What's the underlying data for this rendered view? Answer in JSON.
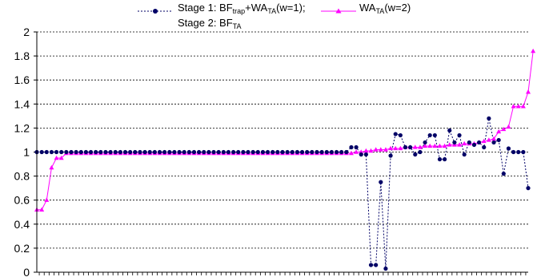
{
  "chart_data": {
    "type": "line",
    "title": "",
    "xlabel": "",
    "ylabel": "",
    "ylim": [
      0,
      2
    ],
    "yticks": [
      "0",
      "0.2",
      "0.4",
      "0.6",
      "0.8",
      "1",
      "1.2",
      "1.4",
      "1.6",
      "1.8",
      "2"
    ],
    "grid": "horizontal dashed",
    "legend_position": "top",
    "n_points": 101,
    "series": [
      {
        "name_line1_prefix": "Stage 1: BF",
        "name_line1_sub1": "trap",
        "name_line1_mid": "+WA",
        "name_line1_sub2": "TA",
        "name_line1_suffix": "(w=1);",
        "name_line2_prefix": "Stage 2: BF",
        "name_line2_sub": "TA",
        "color": "#000066",
        "marker": "circle",
        "line_style": "dotted",
        "values": [
          1.0,
          1.0,
          1.0,
          1.0,
          1.0,
          1.0,
          1.0,
          1.0,
          1.0,
          1.0,
          1.0,
          1.0,
          1.0,
          1.0,
          1.0,
          1.0,
          1.0,
          1.0,
          1.0,
          1.0,
          1.0,
          1.0,
          1.0,
          1.0,
          1.0,
          1.0,
          1.0,
          1.0,
          1.0,
          1.0,
          1.0,
          1.0,
          1.0,
          1.0,
          1.0,
          1.0,
          1.0,
          1.0,
          1.0,
          1.0,
          1.0,
          1.0,
          1.0,
          1.0,
          1.0,
          1.0,
          1.0,
          1.0,
          1.0,
          1.0,
          1.0,
          1.0,
          1.0,
          1.0,
          1.0,
          1.0,
          1.0,
          1.0,
          1.0,
          1.0,
          1.0,
          1.0,
          1.0,
          1.0,
          1.04,
          1.04,
          0.98,
          0.98,
          0.06,
          0.06,
          0.75,
          0.03,
          0.97,
          1.15,
          1.14,
          1.04,
          1.04,
          0.98,
          1.0,
          1.08,
          1.14,
          1.14,
          0.94,
          0.94,
          1.18,
          1.08,
          1.14,
          0.98,
          1.08,
          1.06,
          1.08,
          1.04,
          1.28,
          1.08,
          1.1,
          0.82,
          1.03,
          1.0,
          1.0,
          1.0,
          0.7
        ]
      },
      {
        "name_prefix": "WA",
        "name_sub": "TA",
        "name_suffix": "(w=2)",
        "color": "#ff00ff",
        "marker": "triangle",
        "line_style": "solid",
        "values": [
          0.52,
          0.52,
          0.6,
          0.87,
          0.95,
          0.95,
          0.99,
          0.99,
          0.99,
          0.99,
          0.99,
          0.99,
          0.99,
          0.99,
          0.99,
          0.99,
          0.99,
          0.99,
          0.99,
          0.99,
          0.99,
          0.99,
          0.99,
          0.99,
          0.99,
          0.99,
          0.99,
          0.99,
          0.99,
          0.99,
          0.99,
          0.99,
          0.99,
          0.99,
          0.99,
          0.99,
          0.99,
          0.99,
          0.99,
          0.99,
          0.99,
          0.99,
          0.99,
          0.99,
          0.99,
          0.99,
          0.99,
          0.99,
          0.99,
          0.99,
          0.99,
          0.99,
          0.99,
          0.99,
          0.99,
          0.99,
          0.99,
          0.99,
          0.99,
          0.99,
          0.99,
          0.99,
          0.99,
          0.99,
          0.99,
          1.0,
          1.0,
          1.01,
          1.01,
          1.02,
          1.02,
          1.02,
          1.03,
          1.03,
          1.03,
          1.04,
          1.04,
          1.04,
          1.04,
          1.05,
          1.05,
          1.05,
          1.05,
          1.05,
          1.06,
          1.06,
          1.06,
          1.07,
          1.07,
          1.07,
          1.08,
          1.09,
          1.1,
          1.11,
          1.17,
          1.19,
          1.21,
          1.38,
          1.38,
          1.38,
          1.5,
          1.84
        ]
      }
    ]
  }
}
